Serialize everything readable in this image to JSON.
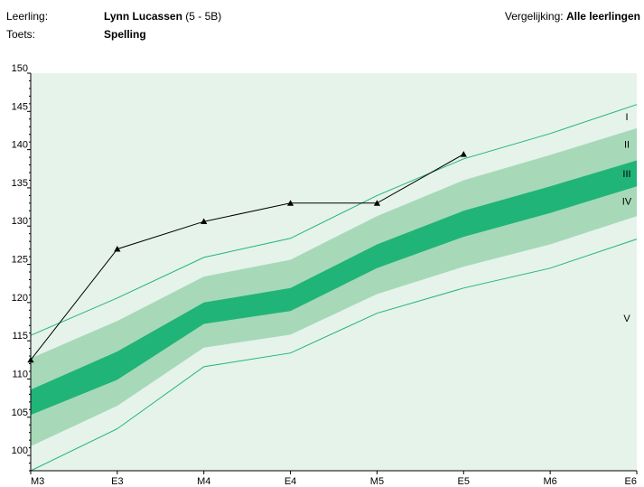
{
  "header": {
    "student_label": "Leerling:",
    "student_name": "Lynn Lucassen",
    "student_group": "(5 - 5B)",
    "test_label": "Toets:",
    "test_name": "Spelling",
    "comparison_label": "Vergelijking:",
    "comparison_value": "Alle leerlingen"
  },
  "chart_data": {
    "type": "line",
    "categories": [
      "M3",
      "E3",
      "M4",
      "E4",
      "M5",
      "E5",
      "M6",
      "E6"
    ],
    "ylim": [
      98,
      150
    ],
    "yticks": [
      100,
      105,
      110,
      115,
      120,
      125,
      130,
      135,
      140,
      145,
      150
    ],
    "grid": false,
    "bands": {
      "boundaries": [
        {
          "name": "b_I_II",
          "values": [
            115.7,
            120.6,
            125.9,
            128.4,
            134.0,
            138.8,
            142.1,
            145.9
          ]
        },
        {
          "name": "b_II_III",
          "values": [
            112.7,
            117.6,
            123.4,
            125.6,
            131.3,
            136.0,
            139.3,
            142.8
          ]
        },
        {
          "name": "b_III_IV",
          "values": [
            108.6,
            113.6,
            120.0,
            121.9,
            127.6,
            132.0,
            135.2,
            138.6
          ]
        },
        {
          "name": "b_IV_V",
          "values": [
            105.3,
            109.9,
            117.2,
            118.9,
            124.5,
            128.6,
            131.7,
            135.2
          ]
        },
        {
          "name": "b_V_lower",
          "values": [
            101.2,
            106.5,
            114.1,
            115.8,
            121.1,
            124.7,
            127.6,
            131.3
          ]
        },
        {
          "name": "b_bottom",
          "values": [
            98.0,
            103.5,
            111.6,
            113.4,
            118.6,
            121.9,
            124.5,
            128.3
          ]
        }
      ],
      "labels": [
        "I",
        "II",
        "III",
        "IV",
        "V"
      ],
      "colors": {
        "bg": "#e5f3ea",
        "light": "#a7d9b9",
        "dark": "#21b478",
        "line": "#21b478"
      }
    },
    "series": [
      {
        "values": [
          112.5,
          127.0,
          130.6,
          133.0,
          133.0,
          139.4,
          null,
          null
        ],
        "color": "#000000"
      }
    ]
  }
}
